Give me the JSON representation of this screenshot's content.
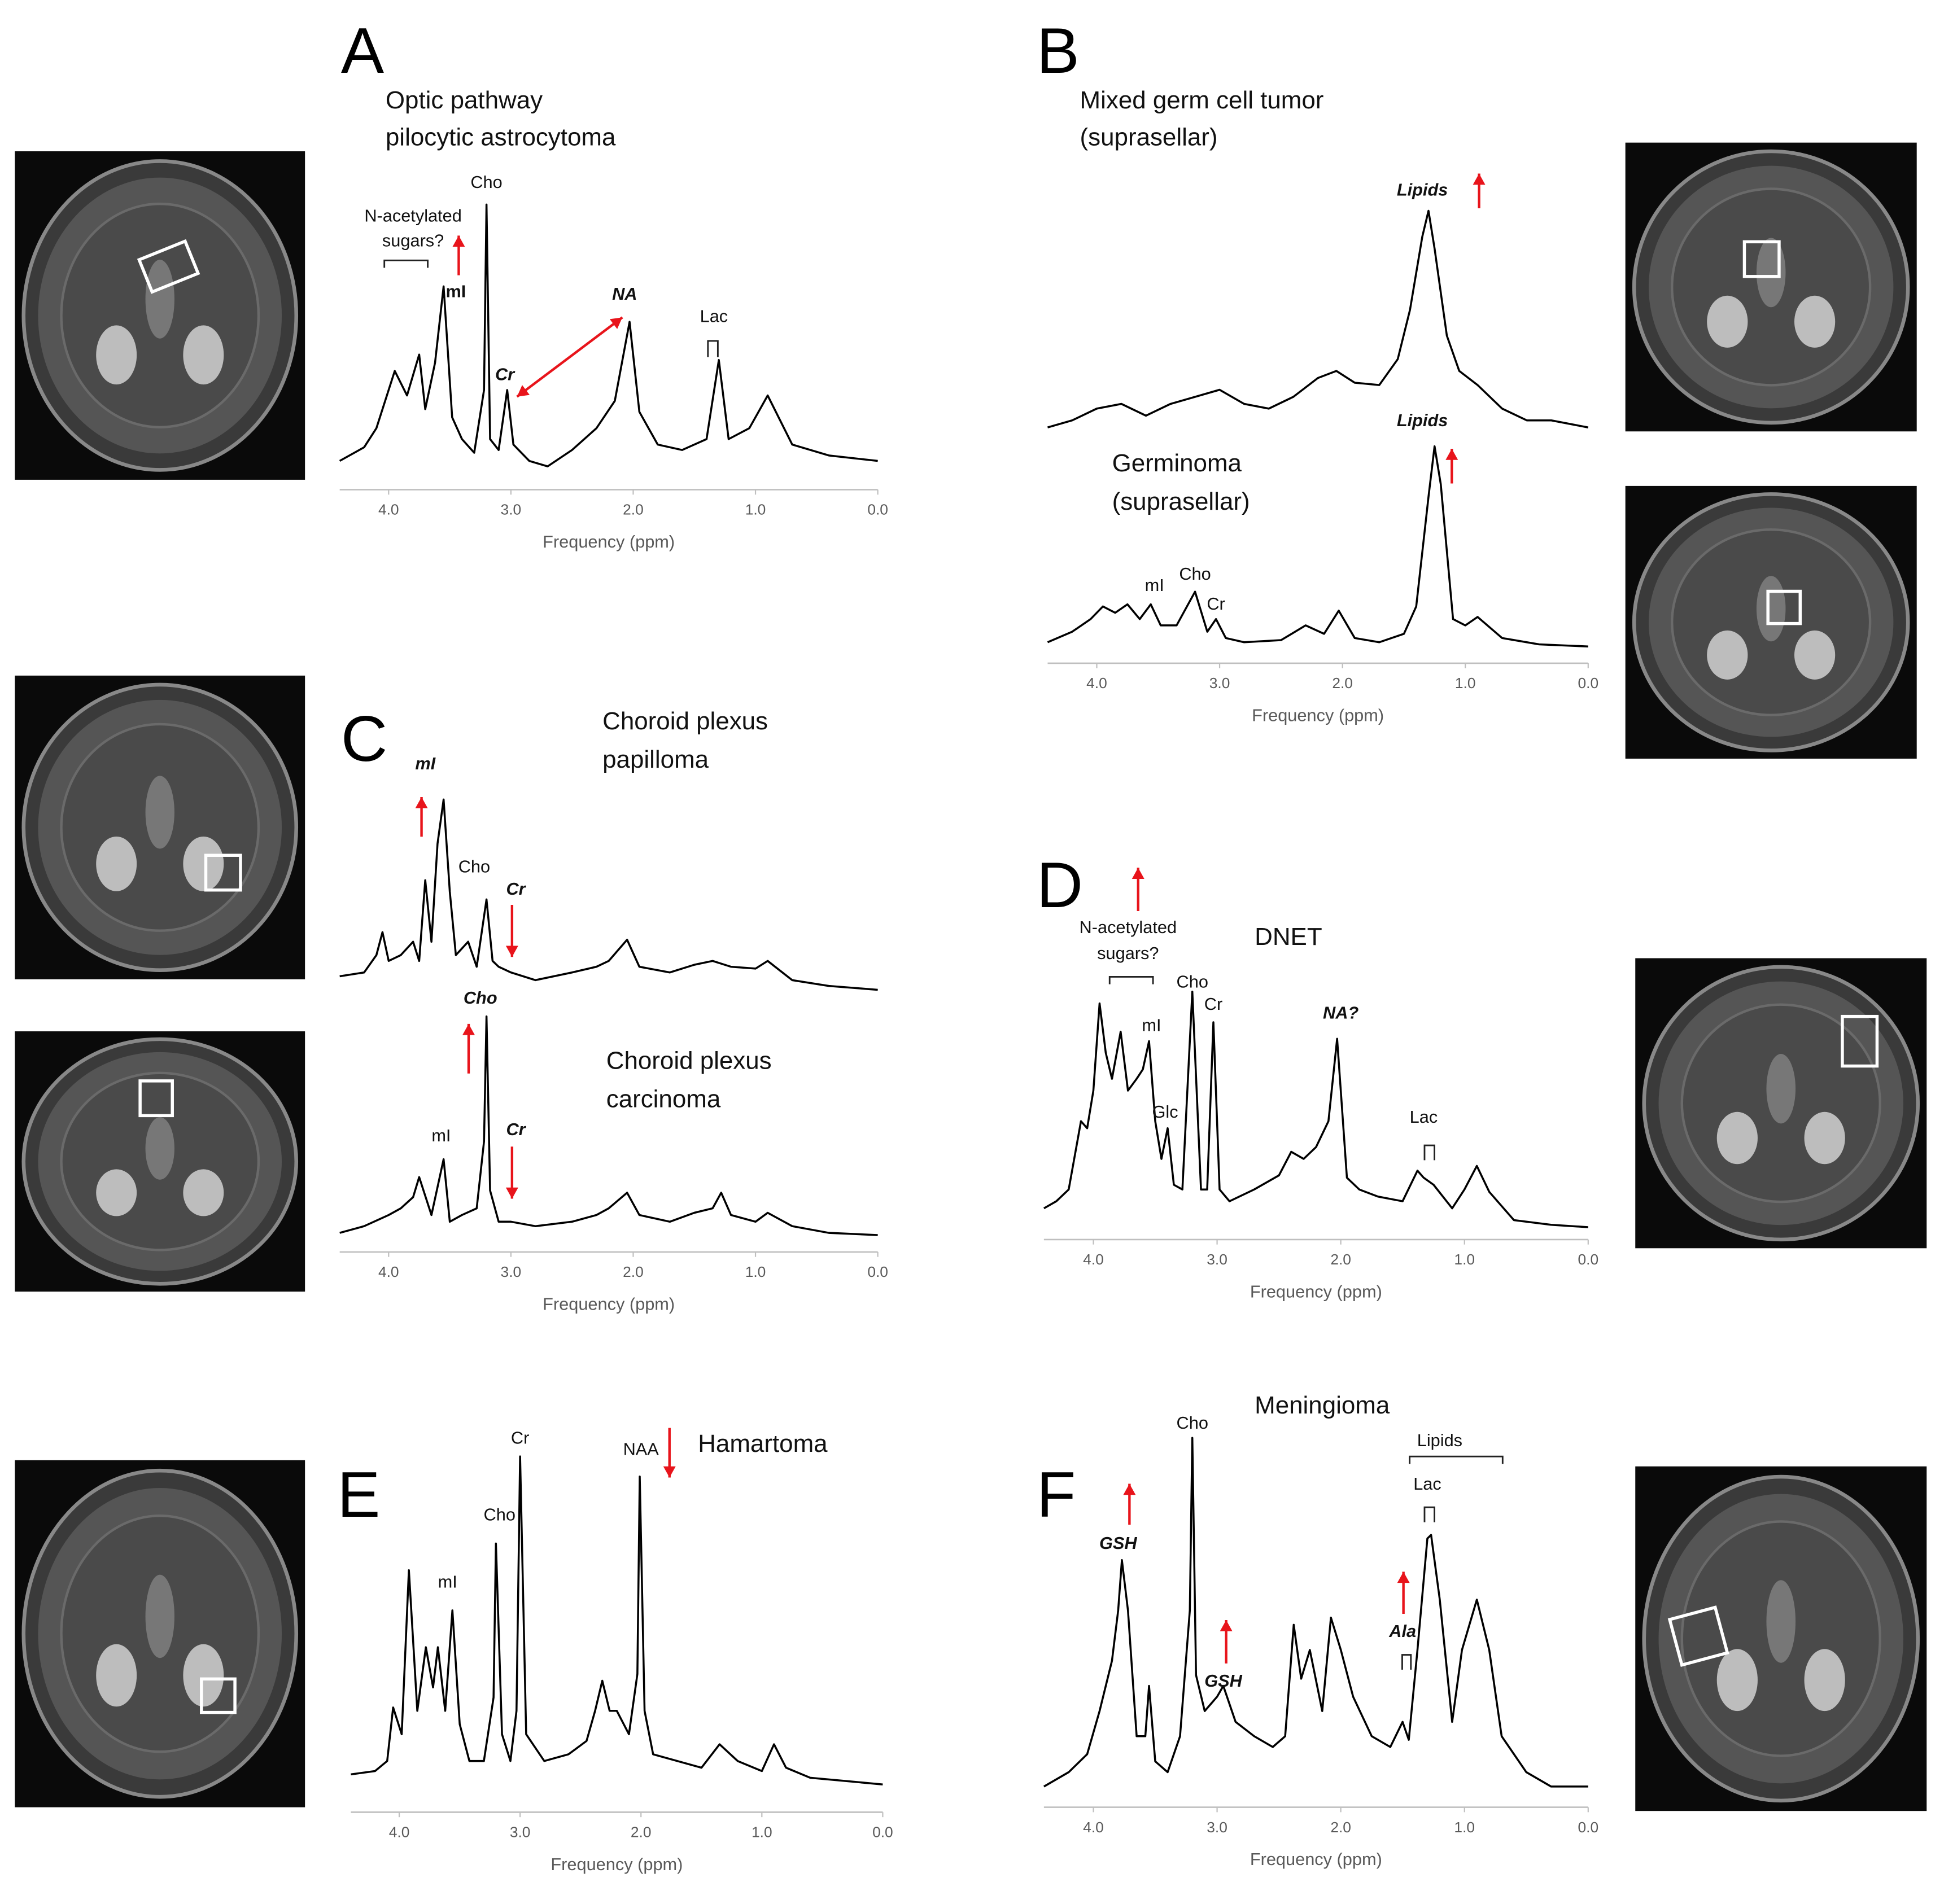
{
  "chart_data": [
    {
      "type": "line",
      "panel": "A",
      "title": [
        "Optic pathway",
        "pilocytic astrocytoma"
      ],
      "xlabel": "Frequency (ppm)",
      "xlim": [
        4.4,
        0
      ],
      "ylim": [
        0,
        100
      ],
      "color": "#000000",
      "xticks": [
        {
          "value": 4,
          "label": "4.0"
        },
        {
          "value": 3,
          "label": "3.0"
        },
        {
          "value": 2,
          "label": "2.0"
        },
        {
          "value": 1,
          "label": "1.0"
        },
        {
          "value": 0,
          "label": "0.0"
        }
      ],
      "x": [
        4.4,
        4.2,
        4.1,
        3.95,
        3.85,
        3.75,
        3.7,
        3.62,
        3.55,
        3.48,
        3.4,
        3.3,
        3.22,
        3.2,
        3.17,
        3.1,
        3.03,
        2.98,
        2.85,
        2.7,
        2.5,
        2.3,
        2.15,
        2.03,
        1.95,
        1.8,
        1.6,
        1.4,
        1.3,
        1.22,
        1.05,
        0.9,
        0.7,
        0.4,
        0
      ],
      "values": [
        6,
        11,
        18,
        39,
        30,
        45,
        25,
        42,
        70,
        22,
        14,
        9,
        32,
        100,
        14,
        10,
        32,
        12,
        6,
        4,
        10,
        18,
        28,
        57,
        24,
        12,
        10,
        14,
        43,
        14,
        18,
        30,
        12,
        8,
        6
      ],
      "annotations": [
        {
          "text": "N-acetylated",
          "x": 3.8
        },
        {
          "text": "sugars?",
          "x": 3.8
        },
        {
          "text": "Cho",
          "x": 3.2
        },
        {
          "text": "mI",
          "x": 3.45,
          "style": "bold"
        },
        {
          "text": "Cr",
          "x": 3.05,
          "style": "bold-italic"
        },
        {
          "text": "NA",
          "x": 2.07,
          "style": "bold-italic"
        },
        {
          "text": "Lac",
          "x": 1.34
        }
      ]
    },
    {
      "type": "line",
      "panel": "B",
      "title": [
        "Mixed germ cell tumor",
        "(suprasellar)"
      ],
      "xlim": [
        4.4,
        0
      ],
      "ylim": [
        0,
        100
      ],
      "color": "#000000",
      "x": [
        4.4,
        4.2,
        4,
        3.8,
        3.6,
        3.4,
        3.2,
        3,
        2.8,
        2.6,
        2.4,
        2.2,
        2.05,
        1.9,
        1.7,
        1.55,
        1.45,
        1.35,
        1.3,
        1.25,
        1.15,
        1.05,
        0.9,
        0.7,
        0.5,
        0.3,
        0
      ],
      "values": [
        8,
        11,
        16,
        18,
        13,
        18,
        21,
        24,
        18,
        16,
        21,
        29,
        32,
        27,
        26,
        37,
        58,
        89,
        100,
        84,
        47,
        32,
        26,
        16,
        11,
        11,
        8
      ],
      "annotations": [
        {
          "text": "Lipids",
          "x": 1.35,
          "style": "bold-italic"
        }
      ]
    },
    {
      "type": "line",
      "title": [
        "Germinoma",
        "(suprasellar)"
      ],
      "xlabel": "Frequency (ppm)",
      "xlim": [
        4.4,
        0
      ],
      "ylim": [
        0,
        100
      ],
      "color": "#000000",
      "xticks": [
        {
          "value": 4,
          "label": "4.0"
        },
        {
          "value": 3,
          "label": "3.0"
        },
        {
          "value": 2,
          "label": "2.0"
        },
        {
          "value": 1,
          "label": "1.0"
        },
        {
          "value": 0,
          "label": "0.0"
        }
      ],
      "x": [
        4.4,
        4.2,
        4.05,
        3.95,
        3.85,
        3.75,
        3.65,
        3.56,
        3.48,
        3.35,
        3.2,
        3.1,
        3.03,
        2.95,
        2.8,
        2.5,
        2.3,
        2.15,
        2.03,
        1.9,
        1.7,
        1.5,
        1.4,
        1.3,
        1.25,
        1.2,
        1.1,
        1,
        0.9,
        0.7,
        0.4,
        0
      ],
      "values": [
        7,
        12,
        18,
        24,
        21,
        25,
        18,
        25,
        15,
        15,
        31,
        12,
        18,
        9,
        7,
        8,
        15,
        11,
        22,
        9,
        7,
        11,
        24,
        76,
        100,
        82,
        18,
        15,
        19,
        9,
        6,
        5
      ],
      "annotations": [
        {
          "text": "Lipids",
          "x": 1.35,
          "style": "bold-italic"
        },
        {
          "text": "mI",
          "x": 3.53
        },
        {
          "text": "Cho",
          "x": 3.2
        },
        {
          "text": "Cr",
          "x": 3.03
        }
      ]
    },
    {
      "type": "line",
      "panel": "C",
      "title": [
        "Choroid plexus",
        "papilloma"
      ],
      "xlim": [
        4.4,
        0
      ],
      "ylim": [
        0,
        100
      ],
      "color": "#000000",
      "x": [
        4.4,
        4.2,
        4.1,
        4.05,
        4,
        3.9,
        3.8,
        3.75,
        3.7,
        3.65,
        3.6,
        3.55,
        3.5,
        3.45,
        3.35,
        3.28,
        3.2,
        3.15,
        3.1,
        3,
        2.8,
        2.5,
        2.3,
        2.2,
        2.05,
        1.95,
        1.7,
        1.5,
        1.35,
        1.2,
        1,
        0.9,
        0.7,
        0.4,
        0
      ],
      "values": [
        8,
        10,
        19,
        31,
        16,
        19,
        26,
        16,
        58,
        26,
        77,
        100,
        52,
        19,
        26,
        13,
        48,
        16,
        13,
        10,
        6,
        10,
        13,
        16,
        27,
        13,
        10,
        14,
        16,
        13,
        12,
        16,
        6,
        3,
        1
      ],
      "annotations": [
        {
          "text": "mI",
          "x": 3.7,
          "style": "bold-italic"
        },
        {
          "text": "Cho",
          "x": 3.3
        },
        {
          "text": "Cr",
          "x": 2.96,
          "style": "bold-italic"
        }
      ]
    },
    {
      "type": "line",
      "title": [
        "Choroid plexus",
        "carcinoma"
      ],
      "xlabel": "Frequency (ppm)",
      "xlim": [
        4.4,
        0
      ],
      "ylim": [
        0,
        100
      ],
      "color": "#000000",
      "xticks": [
        {
          "value": 4,
          "label": "4.0"
        },
        {
          "value": 3,
          "label": "3.0"
        },
        {
          "value": 2,
          "label": "2.0"
        },
        {
          "value": 1,
          "label": "1.0"
        },
        {
          "value": 0,
          "label": "0.0"
        }
      ],
      "x": [
        4.4,
        4.2,
        4,
        3.9,
        3.8,
        3.75,
        3.65,
        3.55,
        3.5,
        3.4,
        3.28,
        3.22,
        3.2,
        3.17,
        3.1,
        3,
        2.8,
        2.5,
        2.3,
        2.2,
        2.05,
        1.95,
        1.7,
        1.5,
        1.35,
        1.28,
        1.2,
        1,
        0.9,
        0.7,
        0.4,
        0
      ],
      "values": [
        3,
        6,
        11,
        14,
        19,
        28,
        11,
        36,
        8,
        11,
        14,
        44,
        100,
        22,
        8,
        8,
        6,
        8,
        11,
        14,
        21,
        11,
        8,
        12,
        14,
        21,
        11,
        8,
        12,
        6,
        3,
        2
      ],
      "annotations": [
        {
          "text": "Cho",
          "x": 3.25,
          "style": "bold-italic"
        },
        {
          "text": "mI",
          "x": 3.57
        },
        {
          "text": "Cr",
          "x": 2.96,
          "style": "bold-italic"
        }
      ]
    },
    {
      "type": "line",
      "panel": "D",
      "title": [
        "DNET"
      ],
      "xlabel": "Frequency (ppm)",
      "xlim": [
        4.4,
        0
      ],
      "ylim": [
        0,
        100
      ],
      "color": "#000000",
      "xticks": [
        {
          "value": 4,
          "label": "4.0"
        },
        {
          "value": 3,
          "label": "3.0"
        },
        {
          "value": 2,
          "label": "2.0"
        },
        {
          "value": 1,
          "label": "1.0"
        },
        {
          "value": 0,
          "label": "0.0"
        }
      ],
      "x": [
        4.4,
        4.3,
        4.2,
        4.1,
        4.05,
        4,
        3.95,
        3.9,
        3.85,
        3.78,
        3.72,
        3.65,
        3.6,
        3.55,
        3.5,
        3.45,
        3.4,
        3.35,
        3.28,
        3.2,
        3.13,
        3.08,
        3.03,
        2.98,
        2.9,
        2.7,
        2.5,
        2.4,
        2.3,
        2.2,
        2.1,
        2.03,
        1.95,
        1.85,
        1.7,
        1.5,
        1.38,
        1.33,
        1.25,
        1.1,
        1,
        0.9,
        0.8,
        0.6,
        0.3,
        0
      ],
      "values": [
        8,
        11,
        16,
        45,
        42,
        58,
        95,
        74,
        63,
        83,
        58,
        63,
        67,
        79,
        45,
        29,
        42,
        18,
        16,
        100,
        16,
        16,
        87,
        16,
        11,
        16,
        22,
        32,
        29,
        34,
        45,
        80,
        21,
        16,
        13,
        11,
        24,
        21,
        18,
        8,
        16,
        26,
        15,
        3,
        1,
        0
      ],
      "annotations": [
        {
          "text": "N-acetylated",
          "x": 3.72
        },
        {
          "text": "sugars?",
          "x": 3.72
        },
        {
          "text": "mI",
          "x": 3.53
        },
        {
          "text": "Glc",
          "x": 3.42
        },
        {
          "text": "Cho",
          "x": 3.2
        },
        {
          "text": "Cr",
          "x": 3.03
        },
        {
          "text": "NA?",
          "x": 2.0,
          "style": "bold-italic"
        },
        {
          "text": "Lac",
          "x": 1.33
        }
      ]
    },
    {
      "type": "line",
      "panel": "E",
      "title": [
        "Hamartoma"
      ],
      "xlabel": "Frequency (ppm)",
      "xlim": [
        4.4,
        0
      ],
      "ylim": [
        0,
        100
      ],
      "color": "#000000",
      "xticks": [
        {
          "value": 4,
          "label": "4.0"
        },
        {
          "value": 3,
          "label": "3.0"
        },
        {
          "value": 2,
          "label": "2.0"
        },
        {
          "value": 1,
          "label": "1.0"
        },
        {
          "value": 0,
          "label": "0.0"
        }
      ],
      "x": [
        4.4,
        4.2,
        4.1,
        4.05,
        3.98,
        3.92,
        3.85,
        3.78,
        3.72,
        3.68,
        3.62,
        3.56,
        3.5,
        3.42,
        3.3,
        3.22,
        3.2,
        3.15,
        3.08,
        3.03,
        3,
        2.95,
        2.8,
        2.6,
        2.45,
        2.38,
        2.32,
        2.26,
        2.2,
        2.1,
        2.03,
        2.01,
        1.97,
        1.9,
        1.7,
        1.5,
        1.35,
        1.2,
        1,
        0.9,
        0.8,
        0.6,
        0.3,
        0
      ],
      "values": [
        5,
        6,
        9,
        25,
        17,
        66,
        24,
        43,
        31,
        43,
        24,
        54,
        20,
        9,
        9,
        28,
        74,
        17,
        9,
        24,
        100,
        17,
        9,
        11,
        15,
        24,
        33,
        24,
        24,
        17,
        35,
        94,
        24,
        11,
        9,
        7,
        14,
        9,
        6,
        14,
        7,
        4,
        3,
        2
      ],
      "annotations": [
        {
          "text": "mI",
          "x": 3.6
        },
        {
          "text": "Cho",
          "x": 3.17
        },
        {
          "text": "Cr",
          "x": 3.0
        },
        {
          "text": "NAA",
          "x": 2.0
        }
      ]
    },
    {
      "type": "line",
      "panel": "F",
      "title": [
        "Meningioma"
      ],
      "xlabel": "Frequency (ppm)",
      "xlim": [
        4.4,
        0
      ],
      "ylim": [
        0,
        100
      ],
      "color": "#000000",
      "xticks": [
        {
          "value": 4,
          "label": "4.0"
        },
        {
          "value": 3,
          "label": "3.0"
        },
        {
          "value": 2,
          "label": "2.0"
        },
        {
          "value": 1,
          "label": "1.0"
        },
        {
          "value": 0,
          "label": "0.0"
        }
      ],
      "x": [
        4.4,
        4.2,
        4.05,
        3.95,
        3.85,
        3.8,
        3.77,
        3.72,
        3.65,
        3.58,
        3.55,
        3.5,
        3.4,
        3.3,
        3.22,
        3.2,
        3.17,
        3.1,
        3,
        2.95,
        2.85,
        2.7,
        2.55,
        2.45,
        2.38,
        2.32,
        2.25,
        2.15,
        2.08,
        2,
        1.9,
        1.75,
        1.6,
        1.5,
        1.45,
        1.38,
        1.3,
        1.27,
        1.2,
        1.1,
        1.02,
        0.9,
        0.8,
        0.7,
        0.5,
        0.3,
        0
      ],
      "values": [
        3,
        7,
        12,
        24,
        38,
        52,
        66,
        52,
        17,
        17,
        31,
        10,
        7,
        17,
        52,
        100,
        34,
        24,
        28,
        31,
        21,
        17,
        14,
        17,
        48,
        33,
        41,
        24,
        50,
        41,
        28,
        17,
        14,
        21,
        16,
        41,
        72,
        73,
        55,
        21,
        41,
        55,
        41,
        17,
        7,
        3,
        3
      ],
      "annotations": [
        {
          "text": "GSH",
          "x": 3.8,
          "style": "bold-italic"
        },
        {
          "text": "Cho",
          "x": 3.2
        },
        {
          "text": "GSH",
          "x": 2.95,
          "style": "bold-italic"
        },
        {
          "text": "Ala",
          "x": 1.5,
          "style": "bold-italic"
        },
        {
          "text": "Lac",
          "x": 1.3
        },
        {
          "text": "Lipids",
          "x": 1.2
        }
      ]
    }
  ]
}
